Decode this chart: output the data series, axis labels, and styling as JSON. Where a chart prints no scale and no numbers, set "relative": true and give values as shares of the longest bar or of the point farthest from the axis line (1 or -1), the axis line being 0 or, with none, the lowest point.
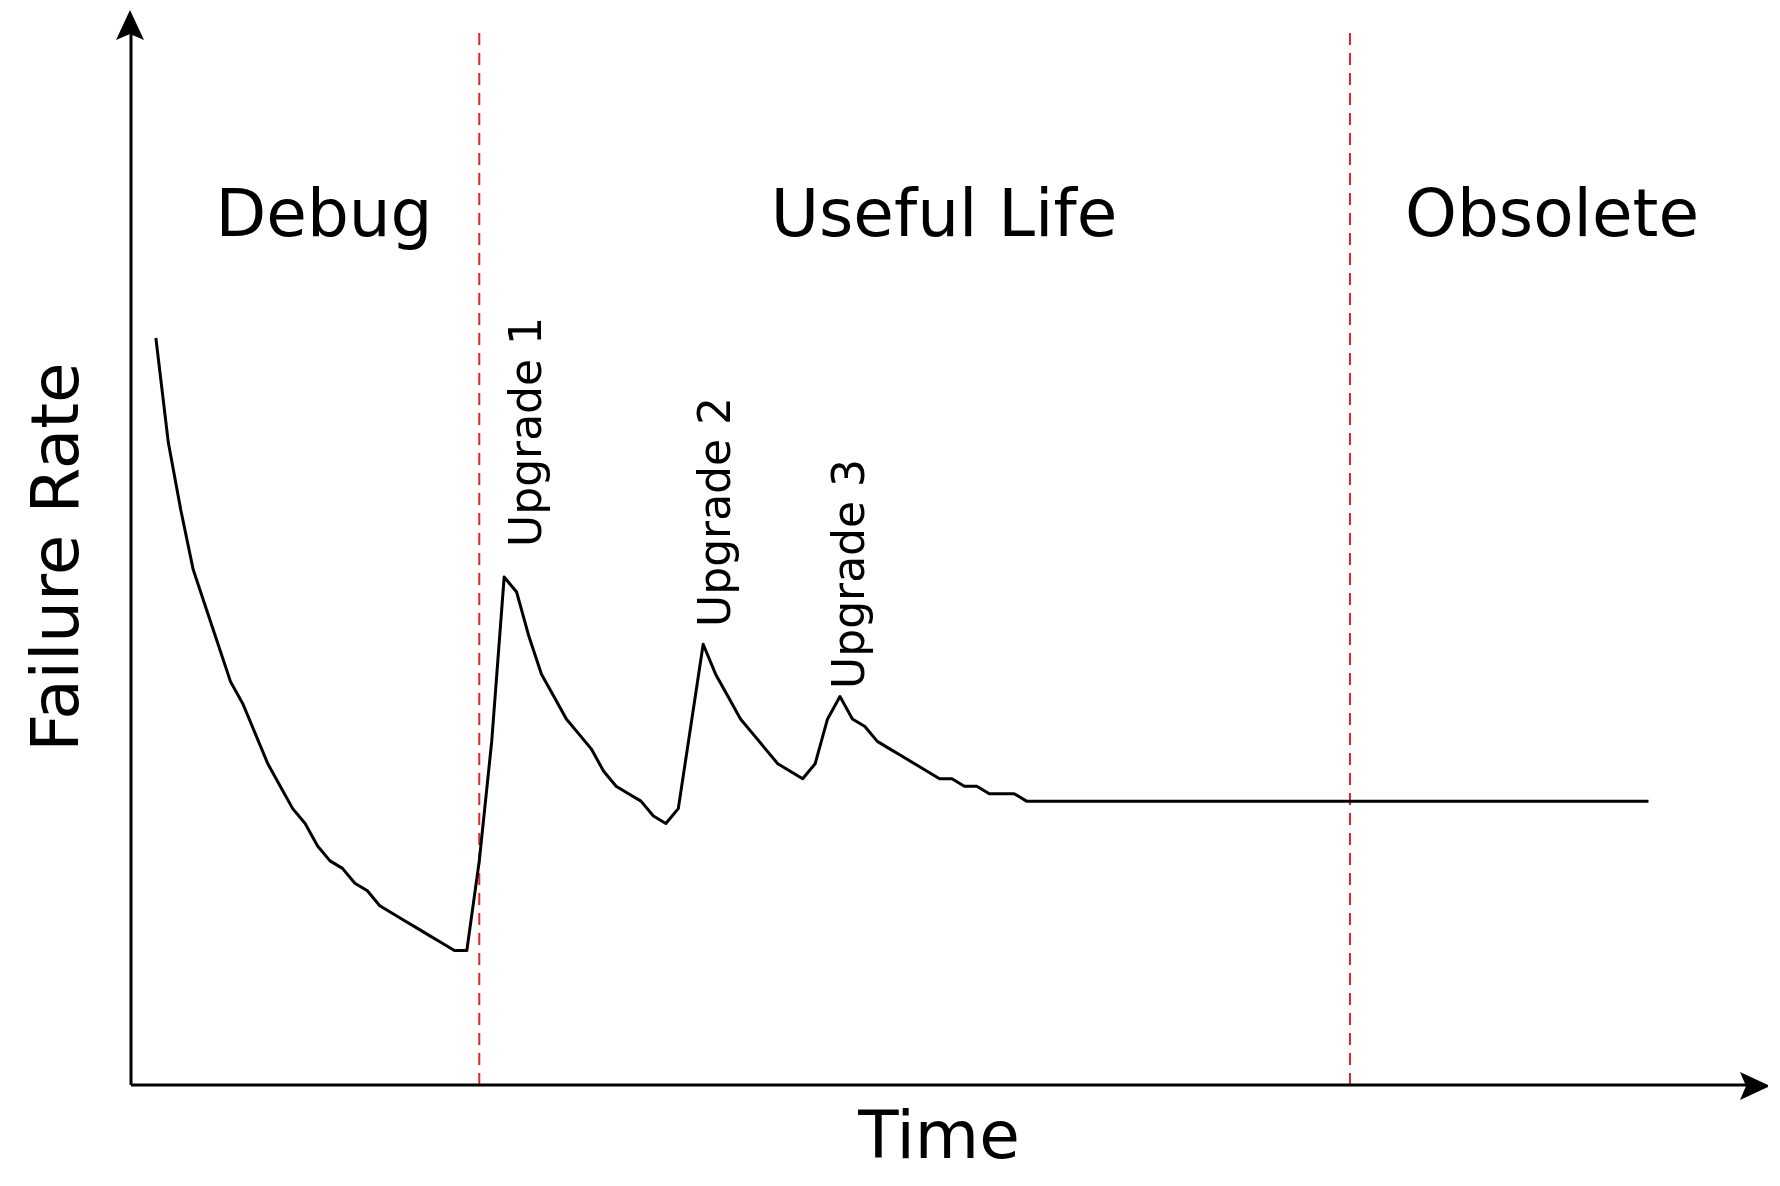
{
  "chart_data": {
    "type": "line",
    "relative": true,
    "xlabel": "Time",
    "ylabel": "Failure Rate",
    "categories": [
      null,
      null,
      null,
      null,
      null,
      null,
      null,
      null,
      null,
      null,
      null,
      null,
      null,
      null,
      null,
      null,
      null,
      null,
      null,
      null,
      null,
      null,
      null,
      null,
      null,
      null,
      null,
      null,
      null,
      null,
      null,
      null,
      null,
      null,
      null,
      null,
      null,
      null,
      null,
      null,
      null,
      null,
      null,
      null,
      null,
      null,
      null,
      null,
      null,
      null,
      null,
      null,
      null,
      null,
      null,
      null,
      null,
      null,
      null,
      null,
      null,
      null,
      null,
      null,
      null,
      null,
      null,
      null,
      null,
      null,
      null,
      null,
      null,
      null,
      null,
      null,
      null,
      null,
      null,
      null,
      null,
      null,
      null,
      null,
      null,
      null,
      null,
      null,
      null,
      null,
      null,
      null,
      null,
      null,
      null,
      null,
      null,
      null,
      null,
      null,
      null,
      null,
      null,
      null,
      null,
      null,
      null,
      null,
      null,
      null,
      null,
      null,
      null,
      null,
      null,
      null,
      null,
      null,
      null,
      null,
      null,
      null,
      null,
      null,
      null,
      null,
      null,
      null,
      null,
      null,
      null
    ],
    "values": [
      null,
      null,
      1.0,
      0.86,
      0.77,
      0.69,
      0.64,
      0.59,
      0.54,
      0.51,
      0.47,
      0.43,
      0.4,
      0.37,
      0.35,
      0.32,
      0.3,
      0.29,
      0.27,
      0.26,
      0.24,
      0.23,
      0.22,
      0.21,
      0.2,
      0.19,
      0.18,
      0.18,
      0.3,
      0.46,
      0.68,
      0.66,
      0.6,
      0.55,
      0.52,
      0.49,
      0.47,
      0.45,
      0.42,
      0.4,
      0.39,
      0.38,
      0.36,
      0.35,
      0.37,
      0.48,
      0.59,
      0.55,
      0.52,
      0.49,
      0.47,
      0.45,
      0.43,
      0.42,
      0.41,
      0.43,
      0.49,
      0.52,
      0.49,
      0.48,
      0.46,
      0.45,
      0.44,
      0.43,
      0.42,
      0.41,
      0.41,
      0.4,
      0.4,
      0.39,
      0.39,
      0.39,
      0.38,
      0.38,
      0.38,
      0.38,
      0.38,
      0.38,
      0.38,
      0.38,
      0.38,
      0.38,
      0.38,
      0.38,
      0.38,
      0.38,
      0.38,
      0.38,
      0.38,
      0.38,
      0.38,
      0.38,
      0.38,
      0.38,
      0.38,
      0.38,
      0.38,
      0.38,
      0.38,
      0.38,
      0.38,
      0.38,
      0.38,
      0.38,
      0.38,
      0.38,
      0.38,
      0.38,
      0.38,
      0.38,
      0.38,
      0.38,
      0.38,
      0.38,
      0.38,
      0.38,
      0.38,
      0.38,
      0.38,
      0.38,
      0.38,
      0.38,
      0.38,
      null,
      null,
      null,
      null,
      null,
      null,
      null,
      null
    ],
    "color": "#000000",
    "annotations": [
      "Debug",
      "Useful Life",
      "Obsolete",
      "Upgrade 1",
      "Upgrade 2",
      "Upgrade 3"
    ]
  }
}
